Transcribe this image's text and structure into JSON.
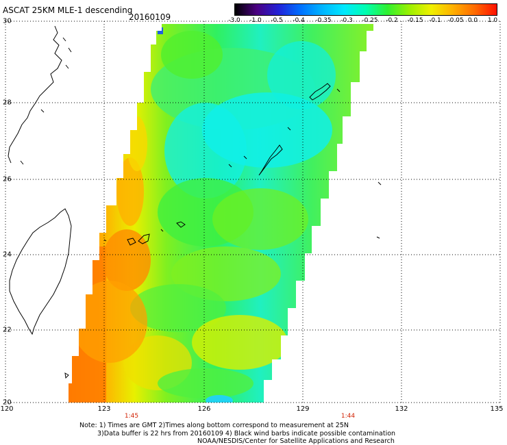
{
  "header": {
    "title": "ASCAT 25KM MLE-1 descending",
    "date": "20160109"
  },
  "colorbar": {
    "labels": [
      "-3.0",
      "-1.0",
      "-0.5",
      "-0.4",
      "-0.35",
      "-0.3",
      "-0.25",
      "-0.2",
      "-0.15",
      "-0.1",
      "-0.05",
      "0.0",
      "1.0"
    ],
    "colors": [
      "#000000",
      "#4b0082",
      "#2222d8",
      "#0070ff",
      "#00b4ff",
      "#00e8ff",
      "#00ffb0",
      "#30f030",
      "#9cf000",
      "#f0f000",
      "#ffb000",
      "#ff6a00",
      "#ff1000"
    ]
  },
  "map": {
    "lat_labels": [
      "30",
      "28",
      "26",
      "24",
      "22",
      "20"
    ],
    "lon_labels": [
      "120",
      "123",
      "126",
      "129",
      "132",
      "135"
    ],
    "times": [
      "1:45",
      "1:44"
    ],
    "time_color": "#d02000"
  },
  "footer": {
    "line1": "Note: 1) Times are GMT 2)Times along bottom correspond to measurement at 25N",
    "line2": "3)Data buffer is 22 hrs from 20160109 4) Black wind barbs indicate possible contamination",
    "line3": "NOAA/NESDIS/Center for Satellite Applications and Research"
  }
}
